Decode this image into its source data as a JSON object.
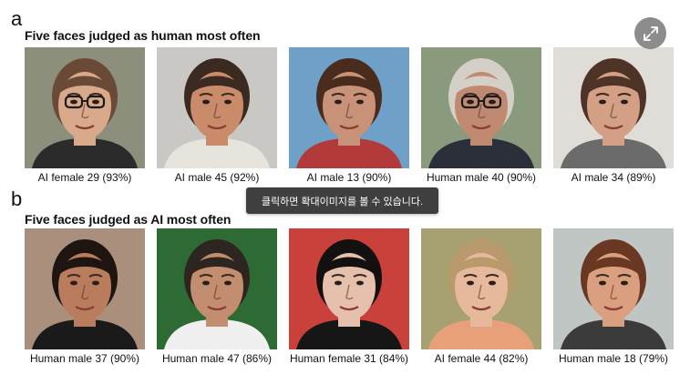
{
  "expand_button": {
    "icon": "expand-icon"
  },
  "tooltip": {
    "text": "클릭하면 확대이미지를 볼 수 있습니다."
  },
  "sections": [
    {
      "letter": "a",
      "title": "Five faces judged as human most often",
      "faces": [
        {
          "caption": "AI female 29 (93%)",
          "bg": "#8c8f7c",
          "skin": "#d9a98c",
          "hair": "#6a4a36",
          "shirt": "#2b2b2b",
          "glasses": true
        },
        {
          "caption": "AI male 45 (92%)",
          "bg": "#c9c8c4",
          "skin": "#c98b69",
          "hair": "#3a2a22",
          "shirt": "#e7e4de",
          "glasses": false
        },
        {
          "caption": "AI male 13 (90%)",
          "bg": "#6fa0c8",
          "skin": "#c79277",
          "hair": "#4a2c1e",
          "shirt": "#b23a3a",
          "glasses": false
        },
        {
          "caption": "Human male 40 (90%)",
          "bg": "#8a9a7c",
          "skin": "#c08a72",
          "hair": "#d4d0c8",
          "shirt": "#2a2f3a",
          "glasses": true
        },
        {
          "caption": "AI male 34 (89%)",
          "bg": "#e0ddd8",
          "skin": "#d3a085",
          "hair": "#4e3426",
          "shirt": "#6b6b6b",
          "glasses": false
        }
      ]
    },
    {
      "letter": "b",
      "title": "Five faces judged as AI most often",
      "faces": [
        {
          "caption": "Human male 37 (90%)",
          "bg": "#a98f7c",
          "skin": "#b97d5e",
          "hair": "#1e1410",
          "shirt": "#1a1a1a",
          "glasses": false
        },
        {
          "caption": "Human male 47 (86%)",
          "bg": "#2e6a34",
          "skin": "#c38d70",
          "hair": "#2d2520",
          "shirt": "#f0f0f0",
          "glasses": false
        },
        {
          "caption": "Human female 31 (84%)",
          "bg": "#c9413a",
          "skin": "#e5c0ac",
          "hair": "#151010",
          "shirt": "#161616",
          "glasses": false
        },
        {
          "caption": "AI female 44 (82%)",
          "bg": "#a7a070",
          "skin": "#e6b99c",
          "hair": "#b89a6c",
          "shirt": "#e7a07a",
          "glasses": false
        },
        {
          "caption": "Human male 18 (79%)",
          "bg": "#bfc6c4",
          "skin": "#d99f7e",
          "hair": "#6a3822",
          "shirt": "#3b3b3b",
          "glasses": false
        }
      ]
    }
  ]
}
